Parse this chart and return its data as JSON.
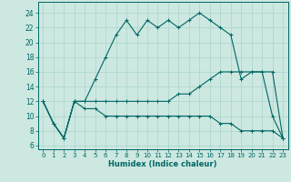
{
  "xlabel": "Humidex (Indice chaleur)",
  "bg_color": "#cce8e0",
  "line_color": "#006666",
  "grid_color": "#aad4cc",
  "x_ticks": [
    0,
    1,
    2,
    3,
    4,
    5,
    6,
    7,
    8,
    9,
    10,
    11,
    12,
    13,
    14,
    15,
    16,
    17,
    18,
    19,
    20,
    21,
    22,
    23
  ],
  "y_ticks": [
    6,
    8,
    10,
    12,
    14,
    16,
    18,
    20,
    22,
    24
  ],
  "ylim": [
    5.5,
    25.5
  ],
  "xlim": [
    -0.5,
    23.5
  ],
  "line1": [
    12,
    9,
    7,
    12,
    12,
    15,
    18,
    21,
    23,
    21,
    23,
    22,
    23,
    22,
    23,
    24,
    23,
    22,
    21,
    15,
    16,
    16,
    10,
    7
  ],
  "line2": [
    12,
    9,
    7,
    12,
    12,
    12,
    12,
    12,
    12,
    12,
    12,
    12,
    12,
    13,
    13,
    14,
    15,
    16,
    16,
    16,
    16,
    16,
    16,
    7
  ],
  "line3": [
    12,
    9,
    7,
    12,
    11,
    11,
    10,
    10,
    10,
    10,
    10,
    10,
    10,
    10,
    10,
    10,
    10,
    9,
    9,
    8,
    8,
    8,
    8,
    7
  ]
}
